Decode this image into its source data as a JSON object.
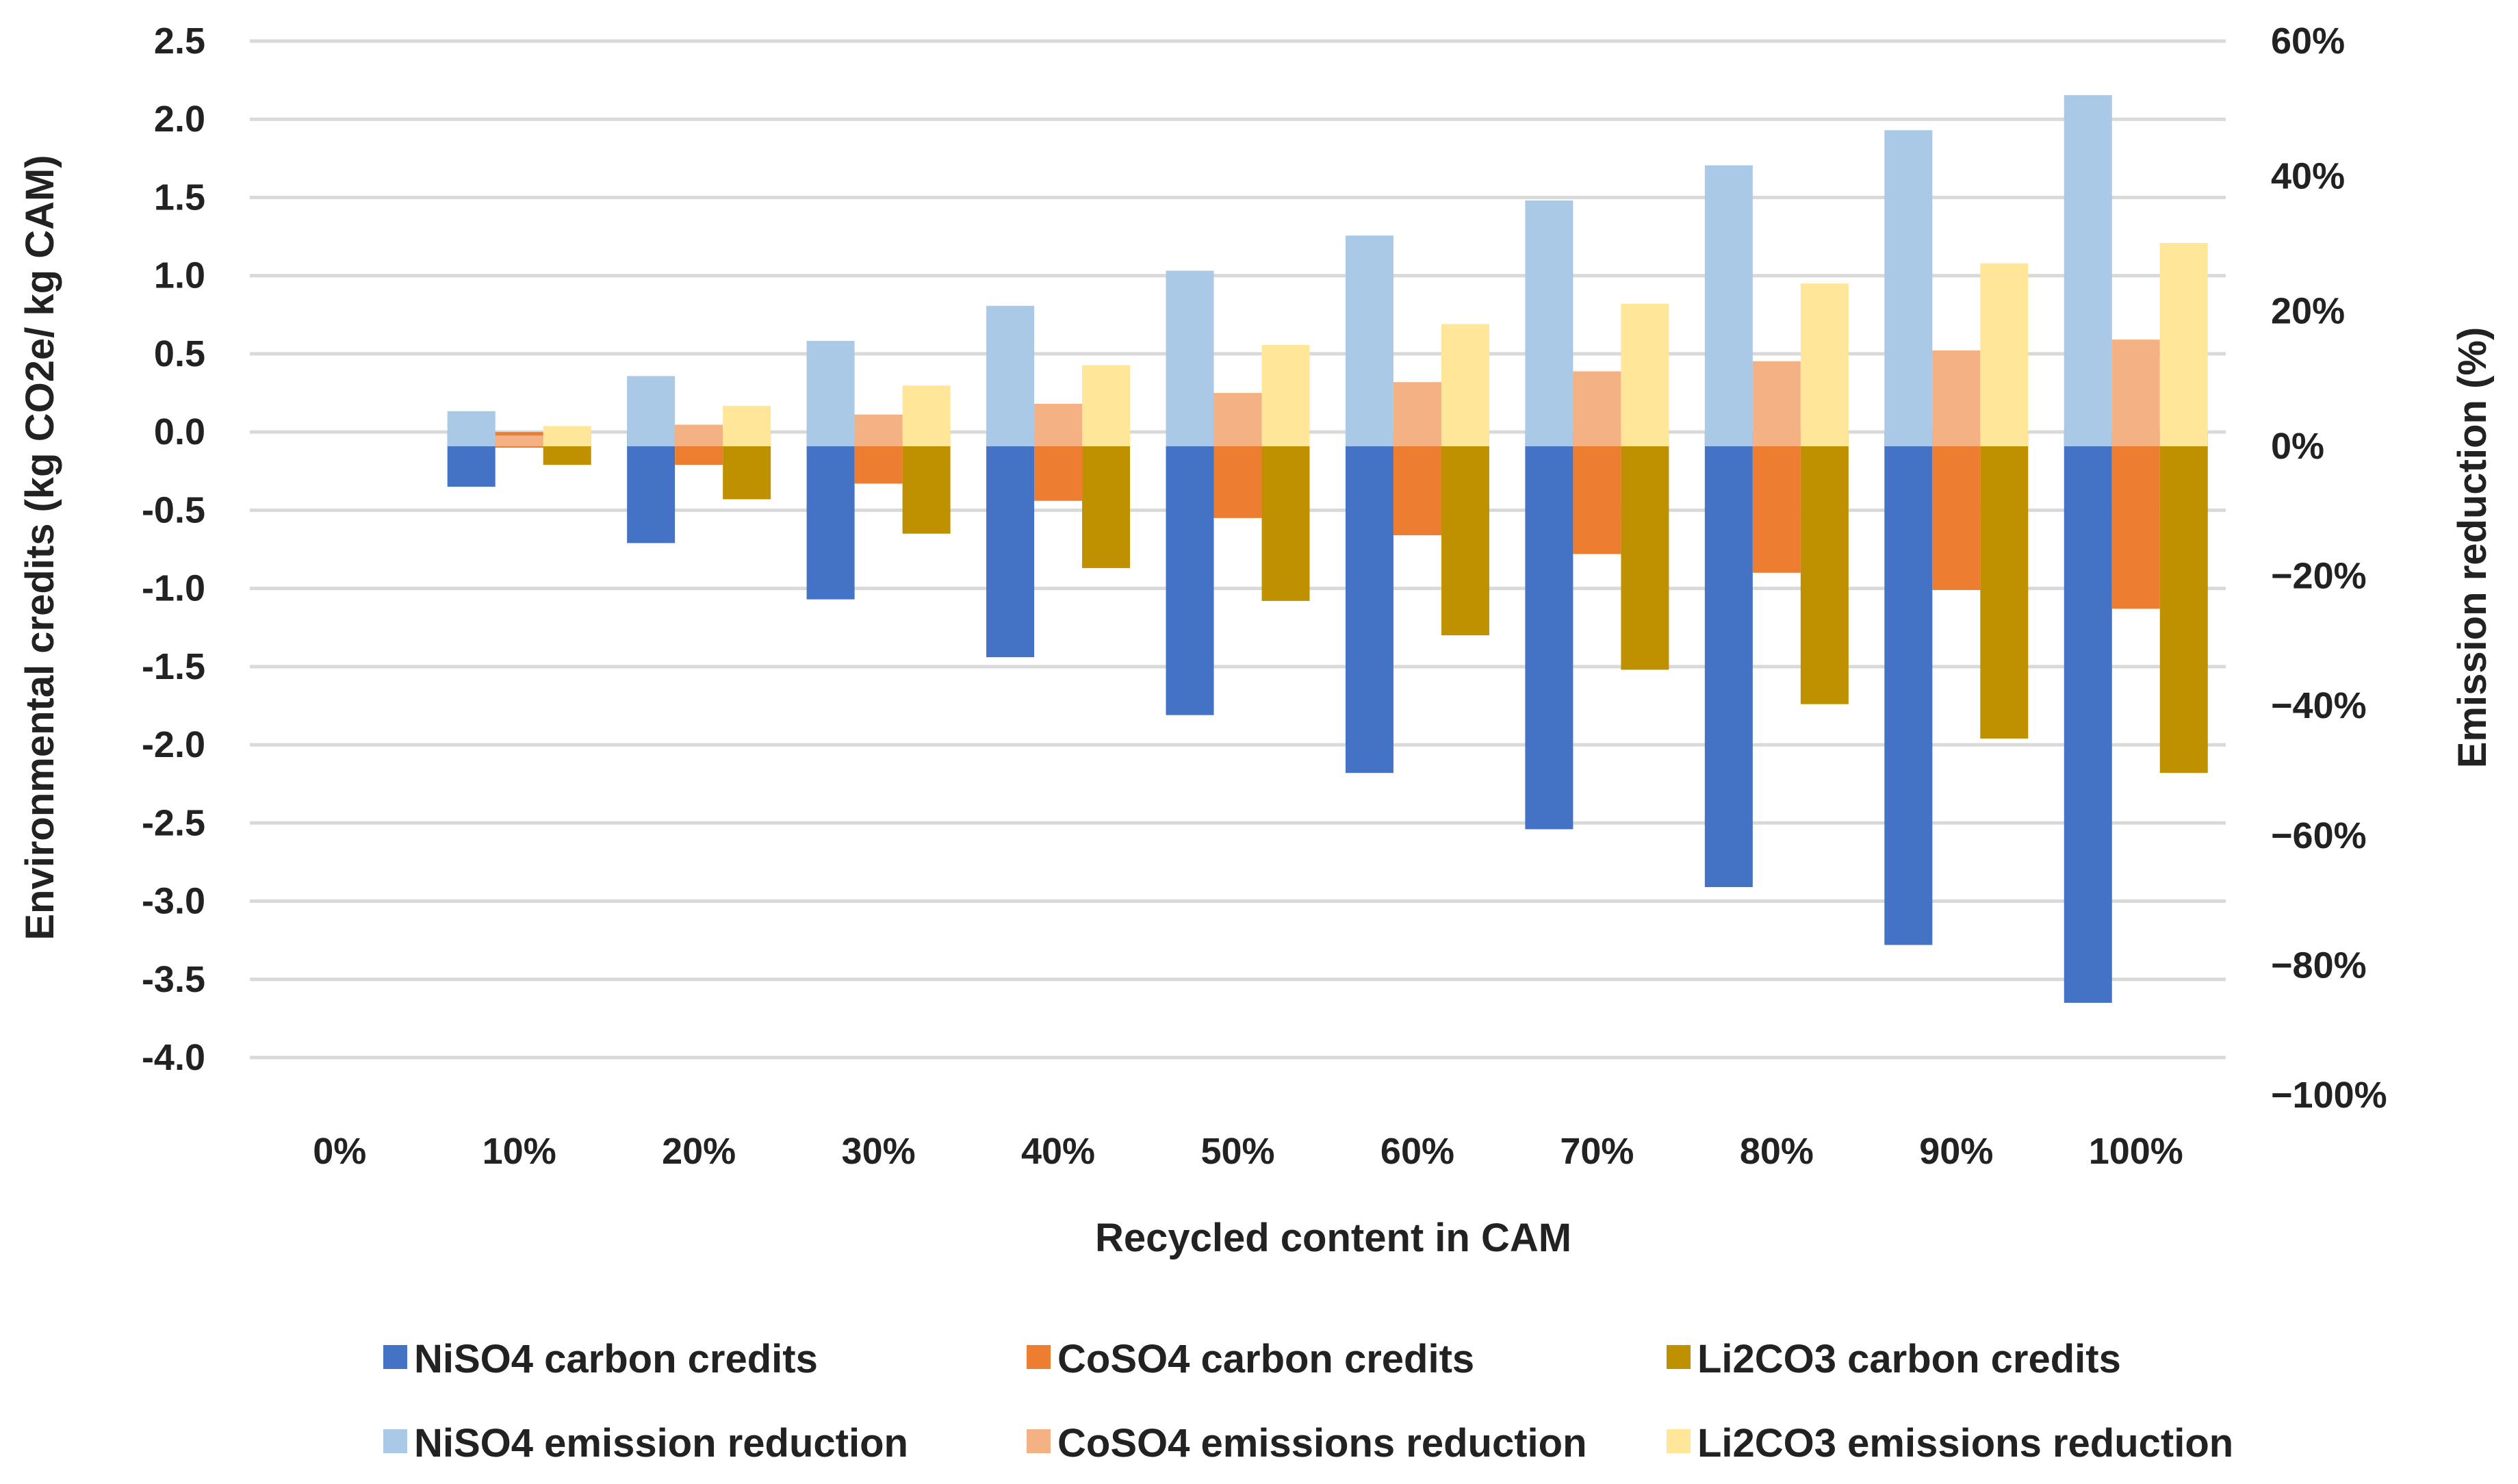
{
  "chart_data": {
    "type": "bar",
    "title": "",
    "xlabel": "Recycled content in CAM",
    "ylabel_left": "Environmental credits (kg CO2e/ kg CAM)",
    "ylabel_right": "Emission reduction (%)",
    "categories": [
      "0%",
      "10%",
      "20%",
      "30%",
      "40%",
      "50%",
      "60%",
      "70%",
      "80%",
      "90%",
      "100%"
    ],
    "left_axis": {
      "ylim": [
        -4.0,
        2.5
      ],
      "ticks": [
        2.5,
        2.0,
        1.5,
        1.0,
        0.5,
        0.0,
        -0.5,
        -1.0,
        -1.5,
        -2.0,
        -2.5,
        -3.0,
        -3.5,
        -4.0
      ],
      "tick_labels": [
        "2.5",
        "2.0",
        "1.5",
        "1.0",
        "0.5",
        "0.0",
        "-0.5",
        "-1.0",
        "-1.5",
        "-2.0",
        "-2.5",
        "-3.0",
        "-3.5",
        "-4.0"
      ]
    },
    "right_axis": {
      "ylim": [
        -100,
        60
      ],
      "ticks": [
        60,
        40,
        20,
        0,
        -20,
        -40,
        -60,
        -80,
        -100
      ],
      "tick_labels": [
        "60%",
        "40%",
        "20%",
        "0%",
        "−20%",
        "−40%",
        "−60%",
        "−80%",
        "−100%"
      ]
    },
    "series": [
      {
        "name": "NiSO4 carbon credits",
        "axis": "left",
        "color": "#4472c4",
        "values": [
          0,
          -0.35,
          -0.71,
          -1.07,
          -1.44,
          -1.81,
          -2.18,
          -2.54,
          -2.91,
          -3.28,
          -3.65
        ]
      },
      {
        "name": "CoSO4 carbon credits",
        "axis": "left",
        "color": "#ed7d31",
        "values": [
          0,
          -0.1,
          -0.21,
          -0.33,
          -0.44,
          -0.55,
          -0.66,
          -0.78,
          -0.9,
          -1.01,
          -1.13
        ]
      },
      {
        "name": "Li2CO3 carbon credits",
        "axis": "left",
        "color": "#bf9000",
        "values": [
          0,
          -0.21,
          -0.43,
          -0.65,
          -0.87,
          -1.08,
          -1.3,
          -1.52,
          -1.74,
          -1.96,
          -2.18
        ]
      },
      {
        "name": "NiSO4 emission reduction",
        "axis": "right",
        "color": "#a9c9e6",
        "values": [
          0,
          5.2,
          10.4,
          15.6,
          20.8,
          26.0,
          31.2,
          36.4,
          41.6,
          46.8,
          52.0
        ]
      },
      {
        "name": "CoSO4 emissions reduction",
        "axis": "right",
        "color": "#f4b183",
        "values": [
          0,
          1.6,
          3.2,
          4.7,
          6.3,
          7.9,
          9.5,
          11.1,
          12.6,
          14.2,
          15.8
        ]
      },
      {
        "name": "Li2CO3 emissions reduction",
        "axis": "right",
        "color": "#ffe699",
        "values": [
          0,
          3.0,
          6.0,
          9.0,
          12.0,
          15.0,
          18.1,
          21.1,
          24.1,
          27.1,
          30.1
        ]
      }
    ],
    "grid": true,
    "legend_position": "bottom"
  }
}
